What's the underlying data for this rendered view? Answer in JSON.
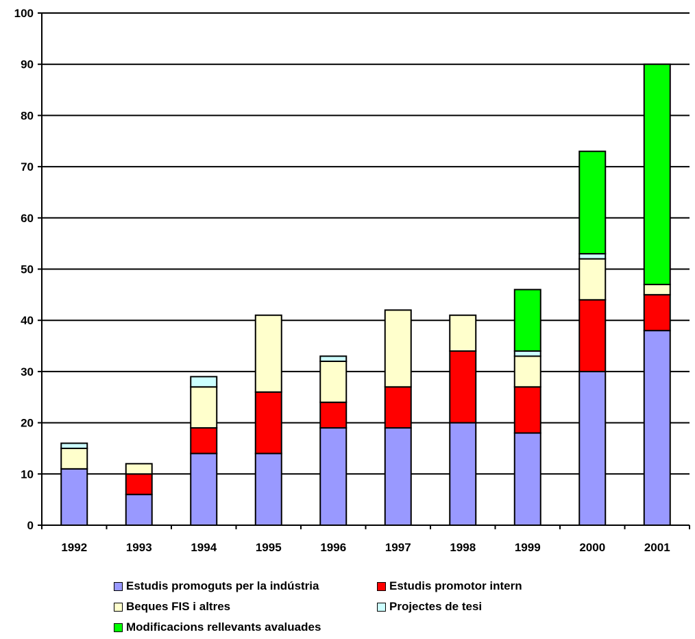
{
  "chart_data": {
    "type": "bar",
    "stacked": true,
    "categories": [
      "1992",
      "1993",
      "1994",
      "1995",
      "1996",
      "1997",
      "1998",
      "1999",
      "2000",
      "2001"
    ],
    "series": [
      {
        "name": "Estudis promoguts per la indústria",
        "color": "#9999ff",
        "values": [
          11,
          6,
          14,
          14,
          19,
          19,
          20,
          18,
          30,
          38
        ]
      },
      {
        "name": "Estudis promotor intern",
        "color": "#ff0000",
        "values": [
          0,
          4,
          5,
          12,
          5,
          8,
          14,
          9,
          14,
          7
        ]
      },
      {
        "name": "Beques FIS i altres",
        "color": "#ffffcc",
        "values": [
          4,
          2,
          8,
          15,
          8,
          15,
          7,
          6,
          8,
          2
        ]
      },
      {
        "name": "Projectes de tesi",
        "color": "#ccffff",
        "values": [
          1,
          0,
          2,
          0,
          1,
          0,
          0,
          1,
          1,
          0
        ]
      },
      {
        "name": "Modificacions rellevants avaluades",
        "color": "#00ff00",
        "values": [
          0,
          0,
          0,
          0,
          0,
          0,
          0,
          12,
          20,
          43
        ]
      }
    ],
    "yticks": [
      "0",
      "10",
      "20",
      "30",
      "40",
      "50",
      "60",
      "70",
      "80",
      "90",
      "100"
    ],
    "ylim": [
      0,
      100
    ],
    "grid": true,
    "legend": "bottom"
  }
}
